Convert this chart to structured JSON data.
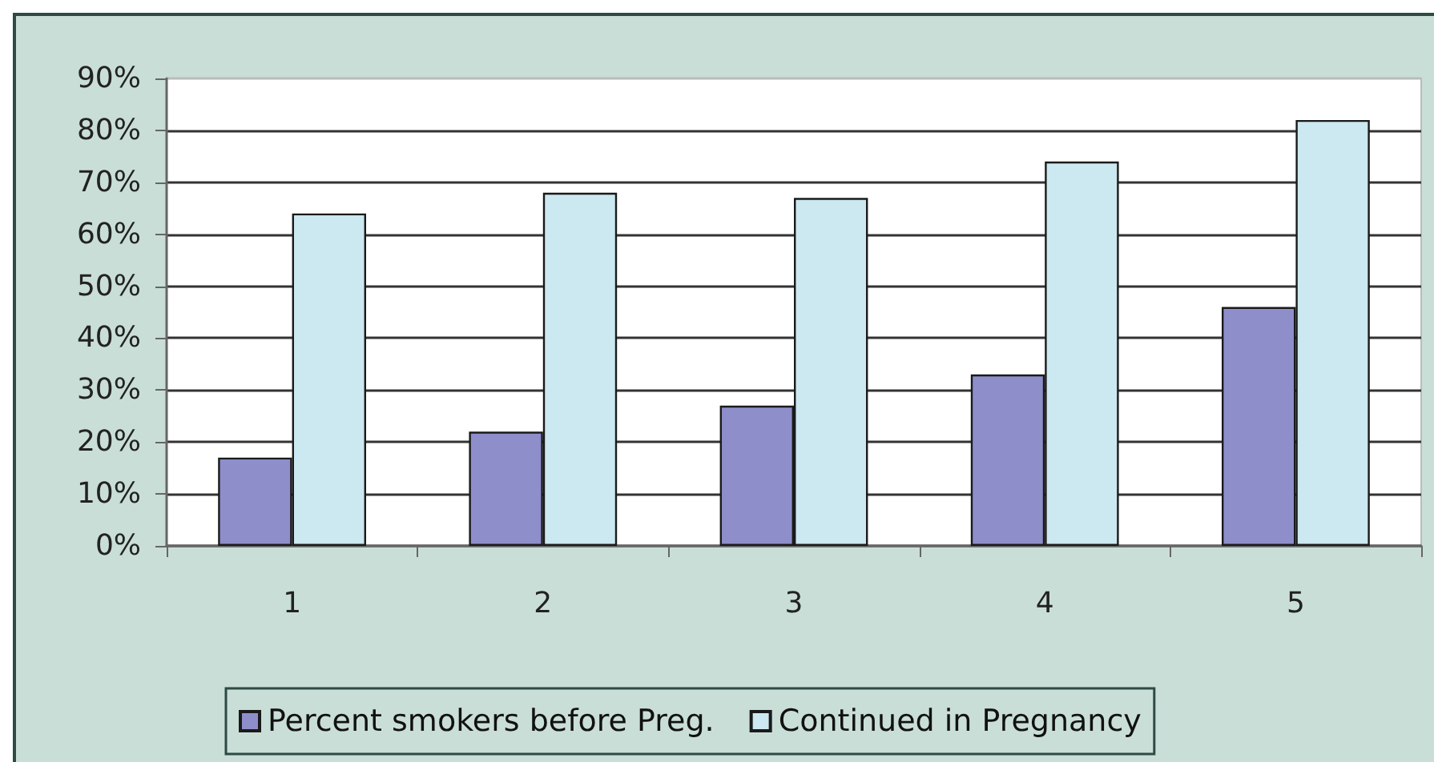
{
  "chart_data": {
    "type": "bar",
    "categories": [
      "1",
      "2",
      "3",
      "4",
      "5"
    ],
    "series": [
      {
        "name": "Percent smokers before Preg.",
        "color": "#8e8ecb",
        "values": [
          17,
          22,
          27,
          33,
          46
        ]
      },
      {
        "name": "Continued in Pregnancy",
        "color": "#cce8f0",
        "values": [
          64,
          68,
          67,
          74,
          82
        ]
      }
    ],
    "ylim": [
      0,
      90
    ],
    "yticks": [
      {
        "value": 0,
        "label": "0%"
      },
      {
        "value": 10,
        "label": "10%"
      },
      {
        "value": 20,
        "label": "20%"
      },
      {
        "value": 30,
        "label": "30%"
      },
      {
        "value": 40,
        "label": "40%"
      },
      {
        "value": 50,
        "label": "50%"
      },
      {
        "value": 60,
        "label": "60%"
      },
      {
        "value": 70,
        "label": "70%"
      },
      {
        "value": 80,
        "label": "80%"
      },
      {
        "value": 90,
        "label": "90%"
      }
    ],
    "grid": "y",
    "legend": "bottom"
  }
}
